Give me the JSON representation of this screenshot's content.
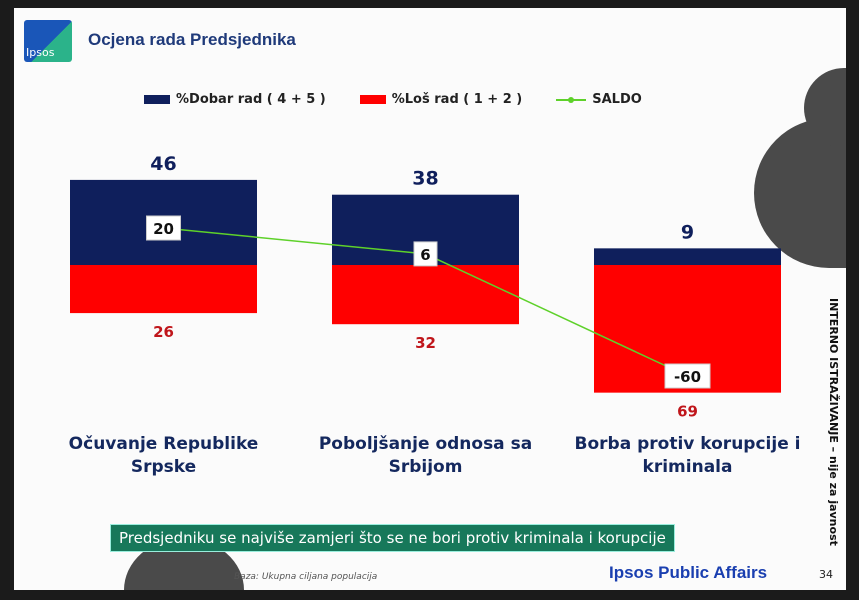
{
  "header": {
    "logo_text": "Ipsos",
    "title": "Ocjena rada Predsjednika"
  },
  "colors": {
    "good": "#0f1f5c",
    "bad": "#ff0000",
    "saldo": "#5ed12a",
    "bad_label": "#c0161b"
  },
  "chart_data": {
    "type": "bar",
    "categories": [
      "Očuvanje Republike Srpske",
      "Poboljšanje odnosa sa Srbijom",
      "Borba protiv korupcije i kriminala"
    ],
    "category_lines": [
      [
        "Očuvanje Republike",
        "Srpske"
      ],
      [
        "Poboljšanje odnosa sa",
        "Srbijom"
      ],
      [
        "Borba protiv korupcije i",
        "kriminala"
      ]
    ],
    "series": [
      {
        "name": "%Dobar rad ( 4 + 5 )",
        "values": [
          46,
          38,
          9
        ]
      },
      {
        "name": "%Loš rad ( 1 + 2 )",
        "values": [
          26,
          32,
          69
        ]
      },
      {
        "name": "SALDO",
        "type": "line",
        "values": [
          20,
          6,
          -60
        ]
      }
    ],
    "stacked_diverging": true,
    "legend_position": "top"
  },
  "footer": {
    "banner": "Predsjedniku se najviše zamjeri što se ne bori protiv kriminala i korupcije",
    "base": "Baza: Ukupna ciljana populacija",
    "brand": "Ipsos Public Affairs",
    "page": "34",
    "side_note": "INTERNO ISTRAŽIVANJE – nije za javnost"
  }
}
